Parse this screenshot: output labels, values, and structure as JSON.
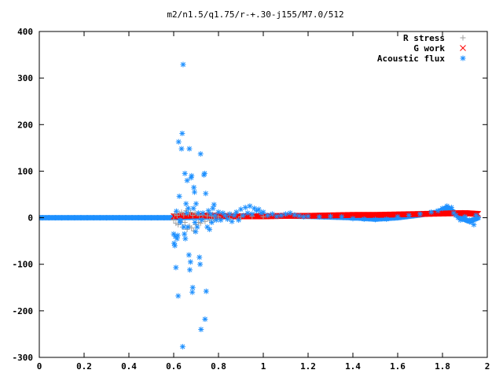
{
  "chart_data": {
    "type": "scatter",
    "title": "m2/n1.5/q1.75/r-+.30-j155/M7.0/512",
    "xlabel": "",
    "ylabel": "",
    "xlim": [
      0,
      2
    ],
    "ylim": [
      -300,
      400
    ],
    "xticks": [
      0,
      0.2,
      0.4,
      0.6,
      0.8,
      1,
      1.2,
      1.4,
      1.6,
      1.8,
      2
    ],
    "xtick_labels": [
      "0",
      "0.2",
      "0.4",
      "0.6",
      "0.8",
      "1",
      "1.2",
      "1.4",
      "1.6",
      "1.8",
      "2"
    ],
    "yticks": [
      -300,
      -200,
      -100,
      0,
      100,
      200,
      300,
      400
    ],
    "ytick_labels": [
      "-300",
      "-200",
      "-100",
      "0",
      "100",
      "200",
      "300",
      "400"
    ],
    "grid": false,
    "legend_position": "top-right",
    "series": [
      {
        "name": "R stress",
        "marker": "plus",
        "color": "#a0a0a0",
        "points": [
          [
            0.6,
            -5
          ],
          [
            0.605,
            8
          ],
          [
            0.61,
            -12
          ],
          [
            0.615,
            5
          ],
          [
            0.62,
            -15
          ],
          [
            0.625,
            10
          ],
          [
            0.63,
            -8
          ],
          [
            0.635,
            12
          ],
          [
            0.64,
            -20
          ],
          [
            0.645,
            6
          ],
          [
            0.65,
            -10
          ],
          [
            0.655,
            15
          ],
          [
            0.66,
            -25
          ],
          [
            0.665,
            8
          ],
          [
            0.67,
            -18
          ],
          [
            0.675,
            12
          ],
          [
            0.68,
            -22
          ],
          [
            0.685,
            5
          ],
          [
            0.69,
            -28
          ],
          [
            0.695,
            10
          ],
          [
            0.7,
            -15
          ],
          [
            0.705,
            8
          ],
          [
            0.71,
            -10
          ],
          [
            0.715,
            5
          ],
          [
            0.72,
            -12
          ],
          [
            0.73,
            6
          ],
          [
            0.74,
            -8
          ],
          [
            0.75,
            4
          ],
          [
            0.76,
            -6
          ],
          [
            0.77,
            3
          ],
          [
            0.78,
            -4
          ],
          [
            0.8,
            2
          ],
          [
            0.85,
            -2
          ],
          [
            0.9,
            2
          ],
          [
            0.95,
            3
          ],
          [
            1.0,
            2
          ]
        ]
      },
      {
        "name": "G work",
        "marker": "x",
        "color": "#ff0000",
        "band": {
          "start": 0.6,
          "end": 1.96,
          "step": 0.003,
          "profile": [
            [
              0.6,
              3
            ],
            [
              0.7,
              5
            ],
            [
              0.8,
              4
            ],
            [
              0.9,
              3
            ],
            [
              1.0,
              3
            ],
            [
              1.1,
              4
            ],
            [
              1.2,
              4
            ],
            [
              1.3,
              5
            ],
            [
              1.4,
              6
            ],
            [
              1.5,
              6
            ],
            [
              1.6,
              7
            ],
            [
              1.7,
              8
            ],
            [
              1.8,
              9
            ],
            [
              1.9,
              10
            ],
            [
              1.96,
              8
            ]
          ]
        },
        "points": []
      },
      {
        "name": "Acoustic flux",
        "marker": "star",
        "color": "#1e90ff",
        "points": [
          [
            0.6,
            -35
          ],
          [
            0.602,
            -55
          ],
          [
            0.605,
            -60
          ],
          [
            0.607,
            -40
          ],
          [
            0.61,
            -107
          ],
          [
            0.612,
            14
          ],
          [
            0.615,
            -45
          ],
          [
            0.618,
            -38
          ],
          [
            0.62,
            -168
          ],
          [
            0.622,
            163
          ],
          [
            0.625,
            46
          ],
          [
            0.628,
            -5
          ],
          [
            0.63,
            -10
          ],
          [
            0.635,
            148
          ],
          [
            0.638,
            181
          ],
          [
            0.64,
            -277
          ],
          [
            0.642,
            329
          ],
          [
            0.645,
            -20
          ],
          [
            0.648,
            -35
          ],
          [
            0.65,
            95
          ],
          [
            0.652,
            -45
          ],
          [
            0.655,
            30
          ],
          [
            0.658,
            10
          ],
          [
            0.66,
            80
          ],
          [
            0.663,
            -20
          ],
          [
            0.665,
            20
          ],
          [
            0.668,
            -80
          ],
          [
            0.67,
            148
          ],
          [
            0.672,
            -112
          ],
          [
            0.675,
            -95
          ],
          [
            0.678,
            86
          ],
          [
            0.68,
            90
          ],
          [
            0.683,
            -160
          ],
          [
            0.685,
            -150
          ],
          [
            0.688,
            20
          ],
          [
            0.69,
            65
          ],
          [
            0.693,
            55
          ],
          [
            0.695,
            -10
          ],
          [
            0.698,
            -30
          ],
          [
            0.7,
            30
          ],
          [
            0.705,
            -20
          ],
          [
            0.71,
            10
          ],
          [
            0.715,
            -85
          ],
          [
            0.718,
            -100
          ],
          [
            0.72,
            137
          ],
          [
            0.722,
            -240
          ],
          [
            0.725,
            -5
          ],
          [
            0.73,
            10
          ],
          [
            0.735,
            92
          ],
          [
            0.738,
            95
          ],
          [
            0.74,
            -218
          ],
          [
            0.743,
            52
          ],
          [
            0.745,
            -158
          ],
          [
            0.75,
            -20
          ],
          [
            0.755,
            15
          ],
          [
            0.76,
            -25
          ],
          [
            0.765,
            8
          ],
          [
            0.77,
            -10
          ],
          [
            0.775,
            20
          ],
          [
            0.78,
            28
          ],
          [
            0.785,
            5
          ],
          [
            0.79,
            -5
          ],
          [
            0.8,
            12
          ],
          [
            0.81,
            -5
          ],
          [
            0.82,
            10
          ],
          [
            0.83,
            5
          ],
          [
            0.84,
            -3
          ],
          [
            0.85,
            8
          ],
          [
            0.86,
            -8
          ],
          [
            0.87,
            5
          ],
          [
            0.88,
            12
          ],
          [
            0.89,
            -5
          ],
          [
            0.9,
            18
          ],
          [
            0.91,
            5
          ],
          [
            0.92,
            22
          ],
          [
            0.93,
            10
          ],
          [
            0.94,
            25
          ],
          [
            0.95,
            8
          ],
          [
            0.96,
            20
          ],
          [
            0.97,
            15
          ],
          [
            0.98,
            18
          ],
          [
            0.99,
            10
          ],
          [
            1.0,
            12
          ],
          [
            1.02,
            5
          ],
          [
            1.04,
            8
          ],
          [
            1.06,
            3
          ],
          [
            1.08,
            5
          ],
          [
            1.1,
            8
          ],
          [
            1.12,
            10
          ],
          [
            1.14,
            6
          ],
          [
            1.16,
            4
          ],
          [
            1.18,
            2
          ],
          [
            1.2,
            3
          ],
          [
            1.25,
            2
          ],
          [
            1.3,
            3
          ],
          [
            1.35,
            2
          ],
          [
            1.4,
            -2
          ],
          [
            1.45,
            -3
          ],
          [
            1.5,
            -4
          ],
          [
            1.55,
            -3
          ],
          [
            1.6,
            2
          ],
          [
            1.65,
            5
          ],
          [
            1.7,
            8
          ],
          [
            1.75,
            12
          ],
          [
            1.78,
            15
          ],
          [
            1.8,
            20
          ],
          [
            1.82,
            25
          ],
          [
            1.84,
            22
          ],
          [
            1.85,
            10
          ],
          [
            1.86,
            5
          ],
          [
            1.87,
            0
          ],
          [
            1.88,
            -5
          ],
          [
            1.9,
            2
          ],
          [
            1.92,
            -5
          ],
          [
            1.93,
            -10
          ],
          [
            1.94,
            -15
          ],
          [
            1.95,
            5
          ],
          [
            1.96,
            0
          ]
        ],
        "band": {
          "start": 0,
          "end": 1.96,
          "step": 0.004,
          "profile": [
            [
              0,
              0
            ],
            [
              0.59,
              0
            ],
            [
              0.8,
              2
            ],
            [
              1.0,
              4
            ],
            [
              1.2,
              3
            ],
            [
              1.4,
              0
            ],
            [
              1.5,
              -3
            ],
            [
              1.6,
              0
            ],
            [
              1.7,
              6
            ],
            [
              1.78,
              12
            ],
            [
              1.82,
              22
            ],
            [
              1.85,
              12
            ],
            [
              1.88,
              0
            ],
            [
              1.92,
              -8
            ],
            [
              1.96,
              0
            ]
          ]
        }
      }
    ]
  }
}
